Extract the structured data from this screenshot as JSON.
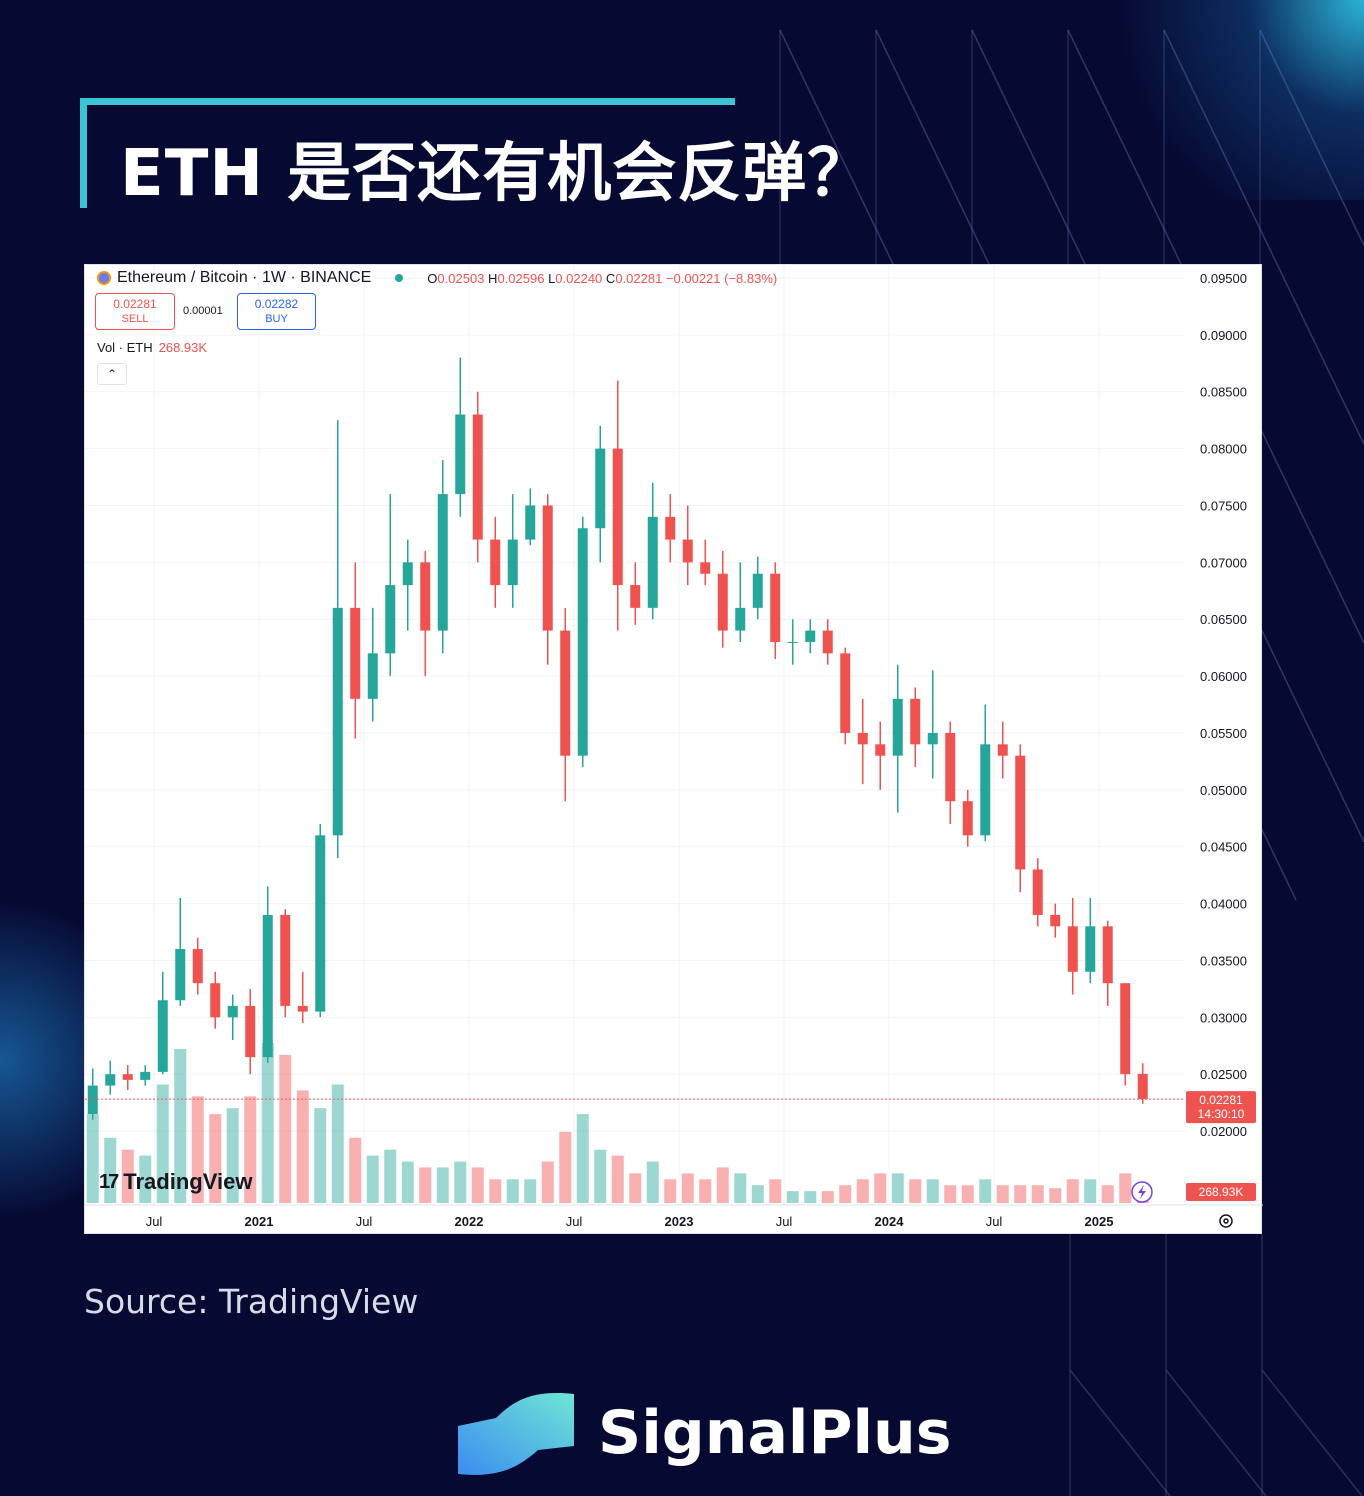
{
  "page": {
    "title": "ETH 是否还有机会反弹？",
    "source": "Source: TradingView",
    "brand": "SignalPlus",
    "colors": {
      "background": "#060a33",
      "accent": "#3cc3d6",
      "up": "#26a69a",
      "down": "#ef5350"
    }
  },
  "chart_header": {
    "symbol": "Ethereum / Bitcoin · 1W · BINANCE",
    "o_label": "O",
    "o": "0.02503",
    "h_label": "H",
    "h": "0.02596",
    "l_label": "L",
    "l": "0.02240",
    "c_label": "C",
    "c": "0.02281",
    "change": "−0.00221 (−8.83%)",
    "sell_price": "0.02281",
    "sell_label": "SELL",
    "spread": "0.00001",
    "buy_price": "0.02282",
    "buy_label": "BUY",
    "vol_label": "Vol · ETH",
    "vol_value": "268.93K",
    "collapse_icon": "chevron-up-icon",
    "watermark": "TradingView",
    "last_price_label": "0.02281",
    "countdown": "14:30:10",
    "last_volume_label": "268.93K"
  },
  "chart_data": {
    "type": "candlestick",
    "title": "Ethereum / Bitcoin · 1W · BINANCE",
    "ylim": [
      0.0195,
      0.0955
    ],
    "y_ticks": [
      "0.09500",
      "0.09000",
      "0.08500",
      "0.08000",
      "0.07500",
      "0.07000",
      "0.06500",
      "0.06000",
      "0.05500",
      "0.05000",
      "0.04500",
      "0.04000",
      "0.03500",
      "0.03000",
      "0.02500",
      "0.02000"
    ],
    "x_ticks": [
      {
        "label": "Jul",
        "date": "2020-07"
      },
      {
        "label": "2021",
        "date": "2021-01"
      },
      {
        "label": "Jul",
        "date": "2021-07"
      },
      {
        "label": "2022",
        "date": "2022-01"
      },
      {
        "label": "Jul",
        "date": "2022-07"
      },
      {
        "label": "2023",
        "date": "2023-01"
      },
      {
        "label": "Jul",
        "date": "2023-07"
      },
      {
        "label": "2024",
        "date": "2024-01"
      },
      {
        "label": "Jul",
        "date": "2024-07"
      },
      {
        "label": "2025",
        "date": "2025-01"
      }
    ],
    "grid": true,
    "last_price": 0.02281,
    "columns": [
      "date",
      "open",
      "high",
      "low",
      "close",
      "volume_k_eth"
    ],
    "candles": [
      [
        "2020-03",
        0.0215,
        0.0255,
        0.021,
        0.024,
        1500
      ],
      [
        "2020-04",
        0.024,
        0.0262,
        0.0232,
        0.025,
        1100
      ],
      [
        "2020-05",
        0.025,
        0.0258,
        0.0236,
        0.0245,
        900
      ],
      [
        "2020-06",
        0.0245,
        0.0258,
        0.024,
        0.0252,
        800
      ],
      [
        "2020-07",
        0.0252,
        0.034,
        0.025,
        0.0315,
        2000
      ],
      [
        "2020-08",
        0.0315,
        0.0405,
        0.031,
        0.036,
        2600
      ],
      [
        "2020-09",
        0.036,
        0.037,
        0.032,
        0.033,
        1800
      ],
      [
        "2020-10",
        0.033,
        0.034,
        0.029,
        0.03,
        1500
      ],
      [
        "2020-11",
        0.03,
        0.032,
        0.028,
        0.031,
        1600
      ],
      [
        "2020-12",
        0.031,
        0.0325,
        0.025,
        0.0265,
        1800
      ],
      [
        "2021-01",
        0.0265,
        0.0415,
        0.026,
        0.039,
        2700
      ],
      [
        "2021-02",
        0.039,
        0.0395,
        0.03,
        0.031,
        2500
      ],
      [
        "2021-03",
        0.031,
        0.034,
        0.0295,
        0.0305,
        1900
      ],
      [
        "2021-04",
        0.0305,
        0.047,
        0.03,
        0.046,
        1600
      ],
      [
        "2021-05",
        0.046,
        0.0825,
        0.044,
        0.066,
        2000
      ],
      [
        "2021-06",
        0.066,
        0.07,
        0.0545,
        0.058,
        1100
      ],
      [
        "2021-07",
        0.058,
        0.066,
        0.056,
        0.062,
        800
      ],
      [
        "2021-08",
        0.062,
        0.076,
        0.06,
        0.068,
        900
      ],
      [
        "2021-09",
        0.068,
        0.072,
        0.064,
        0.07,
        700
      ],
      [
        "2021-10",
        0.07,
        0.071,
        0.06,
        0.064,
        600
      ],
      [
        "2021-11",
        0.064,
        0.079,
        0.062,
        0.076,
        600
      ],
      [
        "2021-12",
        0.076,
        0.088,
        0.074,
        0.083,
        700
      ],
      [
        "2022-01",
        0.083,
        0.085,
        0.07,
        0.072,
        600
      ],
      [
        "2022-02",
        0.072,
        0.074,
        0.066,
        0.068,
        400
      ],
      [
        "2022-03",
        0.068,
        0.076,
        0.066,
        0.072,
        400
      ],
      [
        "2022-04",
        0.072,
        0.0765,
        0.0715,
        0.075,
        400
      ],
      [
        "2022-05",
        0.075,
        0.076,
        0.061,
        0.064,
        700
      ],
      [
        "2022-06",
        0.064,
        0.066,
        0.049,
        0.053,
        1200
      ],
      [
        "2022-07",
        0.053,
        0.074,
        0.052,
        0.073,
        1500
      ],
      [
        "2022-08",
        0.073,
        0.082,
        0.07,
        0.08,
        900
      ],
      [
        "2022-09",
        0.08,
        0.086,
        0.064,
        0.068,
        800
      ],
      [
        "2022-10",
        0.068,
        0.07,
        0.0645,
        0.066,
        500
      ],
      [
        "2022-11",
        0.066,
        0.077,
        0.065,
        0.074,
        700
      ],
      [
        "2022-12",
        0.074,
        0.076,
        0.07,
        0.072,
        400
      ],
      [
        "2023-01",
        0.072,
        0.075,
        0.068,
        0.07,
        500
      ],
      [
        "2023-02",
        0.07,
        0.072,
        0.068,
        0.069,
        400
      ],
      [
        "2023-03",
        0.069,
        0.071,
        0.0625,
        0.064,
        600
      ],
      [
        "2023-04",
        0.064,
        0.07,
        0.063,
        0.066,
        500
      ],
      [
        "2023-05",
        0.066,
        0.0705,
        0.065,
        0.069,
        300
      ],
      [
        "2023-06",
        0.069,
        0.07,
        0.0615,
        0.063,
        400
      ],
      [
        "2023-07",
        0.063,
        0.065,
        0.061,
        0.063,
        200
      ],
      [
        "2023-08",
        0.063,
        0.065,
        0.062,
        0.064,
        200
      ],
      [
        "2023-09",
        0.064,
        0.065,
        0.061,
        0.062,
        200
      ],
      [
        "2023-10",
        0.062,
        0.0625,
        0.054,
        0.055,
        300
      ],
      [
        "2023-11",
        0.055,
        0.058,
        0.0505,
        0.054,
        400
      ],
      [
        "2023-12",
        0.054,
        0.056,
        0.05,
        0.053,
        500
      ],
      [
        "2024-01",
        0.053,
        0.061,
        0.048,
        0.058,
        500
      ],
      [
        "2024-02",
        0.058,
        0.059,
        0.052,
        0.054,
        400
      ],
      [
        "2024-03",
        0.054,
        0.0605,
        0.051,
        0.055,
        400
      ],
      [
        "2024-04",
        0.055,
        0.056,
        0.047,
        0.049,
        300
      ],
      [
        "2024-05",
        0.049,
        0.05,
        0.045,
        0.046,
        300
      ],
      [
        "2024-06",
        0.046,
        0.0575,
        0.0455,
        0.054,
        400
      ],
      [
        "2024-07",
        0.054,
        0.056,
        0.051,
        0.053,
        300
      ],
      [
        "2024-08",
        0.053,
        0.054,
        0.041,
        0.043,
        300
      ],
      [
        "2024-09",
        0.043,
        0.044,
        0.038,
        0.039,
        300
      ],
      [
        "2024-10",
        0.039,
        0.04,
        0.037,
        0.038,
        250
      ],
      [
        "2024-11",
        0.038,
        0.0405,
        0.032,
        0.034,
        400
      ],
      [
        "2024-12",
        0.034,
        0.0405,
        0.033,
        0.038,
        400
      ],
      [
        "2025-01",
        0.038,
        0.0385,
        0.031,
        0.033,
        300
      ],
      [
        "2025-02",
        0.033,
        0.033,
        0.024,
        0.025,
        500
      ],
      [
        "2025-03",
        0.02503,
        0.02596,
        0.0224,
        0.02281,
        268.93
      ]
    ]
  }
}
